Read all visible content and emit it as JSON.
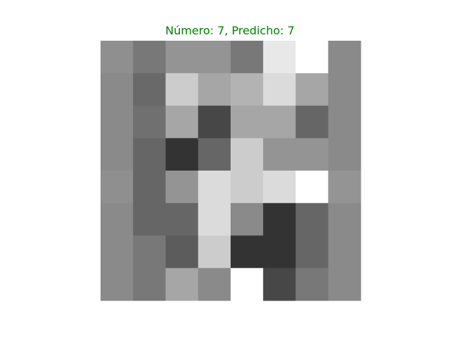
{
  "chart_data": {
    "type": "heatmap",
    "title": "Número: 7, Predicho: 7",
    "title_color": "#008000",
    "colormap": "gray",
    "axes_visible": false,
    "rows": 8,
    "cols": 8,
    "values": [
      [
        0.56,
        0.47,
        0.58,
        0.58,
        0.47,
        0.91,
        1.0,
        0.54
      ],
      [
        0.54,
        0.41,
        0.8,
        0.65,
        0.7,
        0.86,
        0.65,
        0.54
      ],
      [
        0.54,
        0.44,
        0.65,
        0.28,
        0.65,
        0.65,
        0.4,
        0.54
      ],
      [
        0.54,
        0.4,
        0.2,
        0.4,
        0.8,
        0.58,
        0.58,
        0.54
      ],
      [
        0.56,
        0.4,
        0.58,
        0.86,
        0.8,
        0.86,
        1.0,
        0.58
      ],
      [
        0.54,
        0.4,
        0.4,
        0.86,
        0.54,
        0.2,
        0.4,
        0.54
      ],
      [
        0.54,
        0.47,
        0.36,
        0.8,
        0.2,
        0.2,
        0.4,
        0.54
      ],
      [
        0.54,
        0.47,
        0.65,
        0.54,
        1.0,
        0.28,
        0.47,
        0.54
      ]
    ]
  }
}
